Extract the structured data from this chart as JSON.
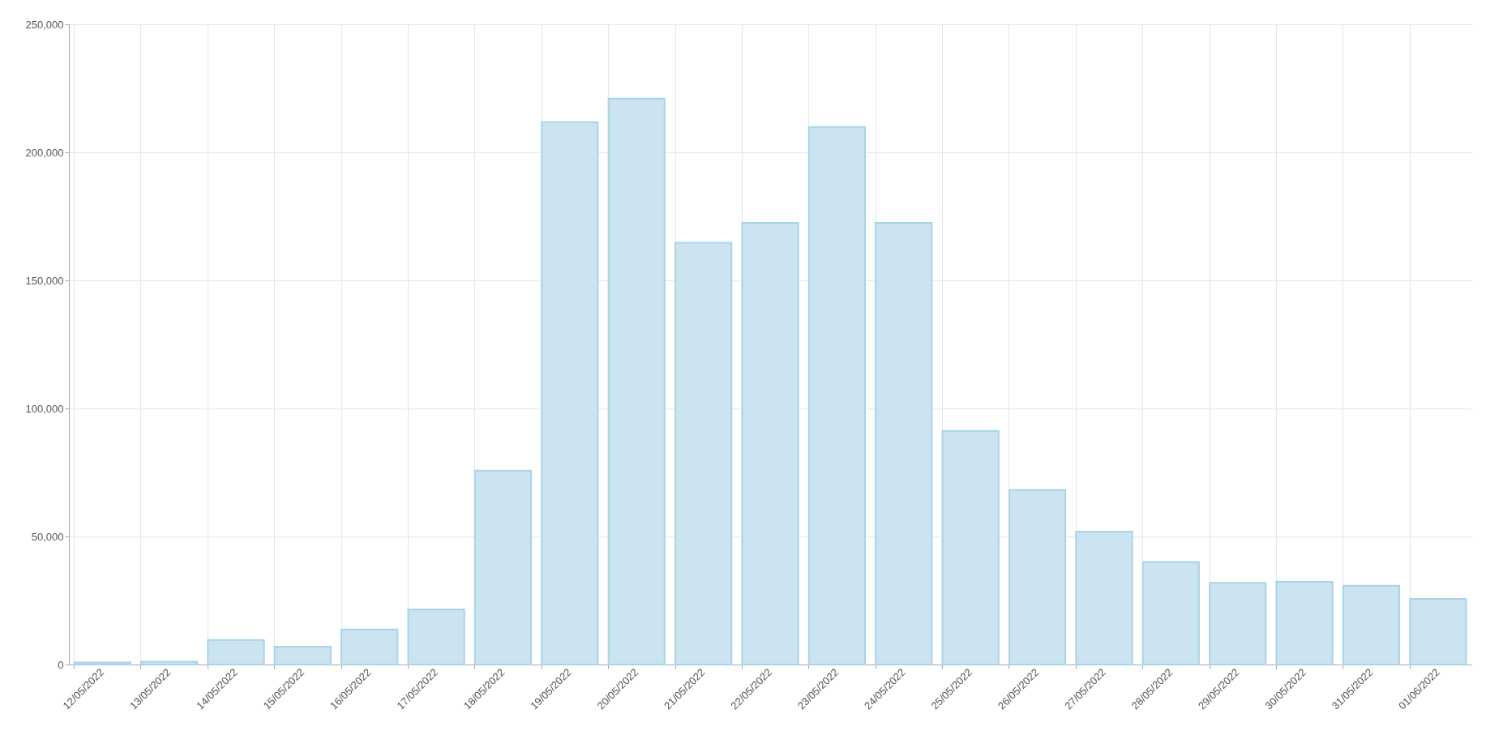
{
  "chart_data": {
    "type": "bar",
    "categories": [
      "12/05/2022",
      "13/05/2022",
      "14/05/2022",
      "15/05/2022",
      "16/05/2022",
      "17/05/2022",
      "18/05/2022",
      "19/05/2022",
      "20/05/2022",
      "21/05/2022",
      "22/05/2022",
      "23/05/2022",
      "24/05/2022",
      "25/05/2022",
      "26/05/2022",
      "27/05/2022",
      "28/05/2022",
      "29/05/2022",
      "30/05/2022",
      "31/05/2022",
      "01/06/2022"
    ],
    "values": [
      800,
      1100,
      9600,
      7000,
      13700,
      21500,
      75700,
      211800,
      221000,
      164700,
      172500,
      209900,
      172500,
      91200,
      68200,
      51900,
      40000,
      31900,
      32300,
      30800,
      25600
    ],
    "color": "#cce3f0",
    "ylim": [
      0,
      250000
    ],
    "yticks": [
      0,
      {
        "value": 50000,
        "label": "50,000"
      },
      {
        "value": 100000,
        "label": "100,000"
      },
      {
        "value": 150000,
        "label": "150,000"
      },
      {
        "value": 200000,
        "label": "200,000"
      },
      {
        "value": 250000,
        "label": "250,000"
      }
    ],
    "grid": true
  }
}
